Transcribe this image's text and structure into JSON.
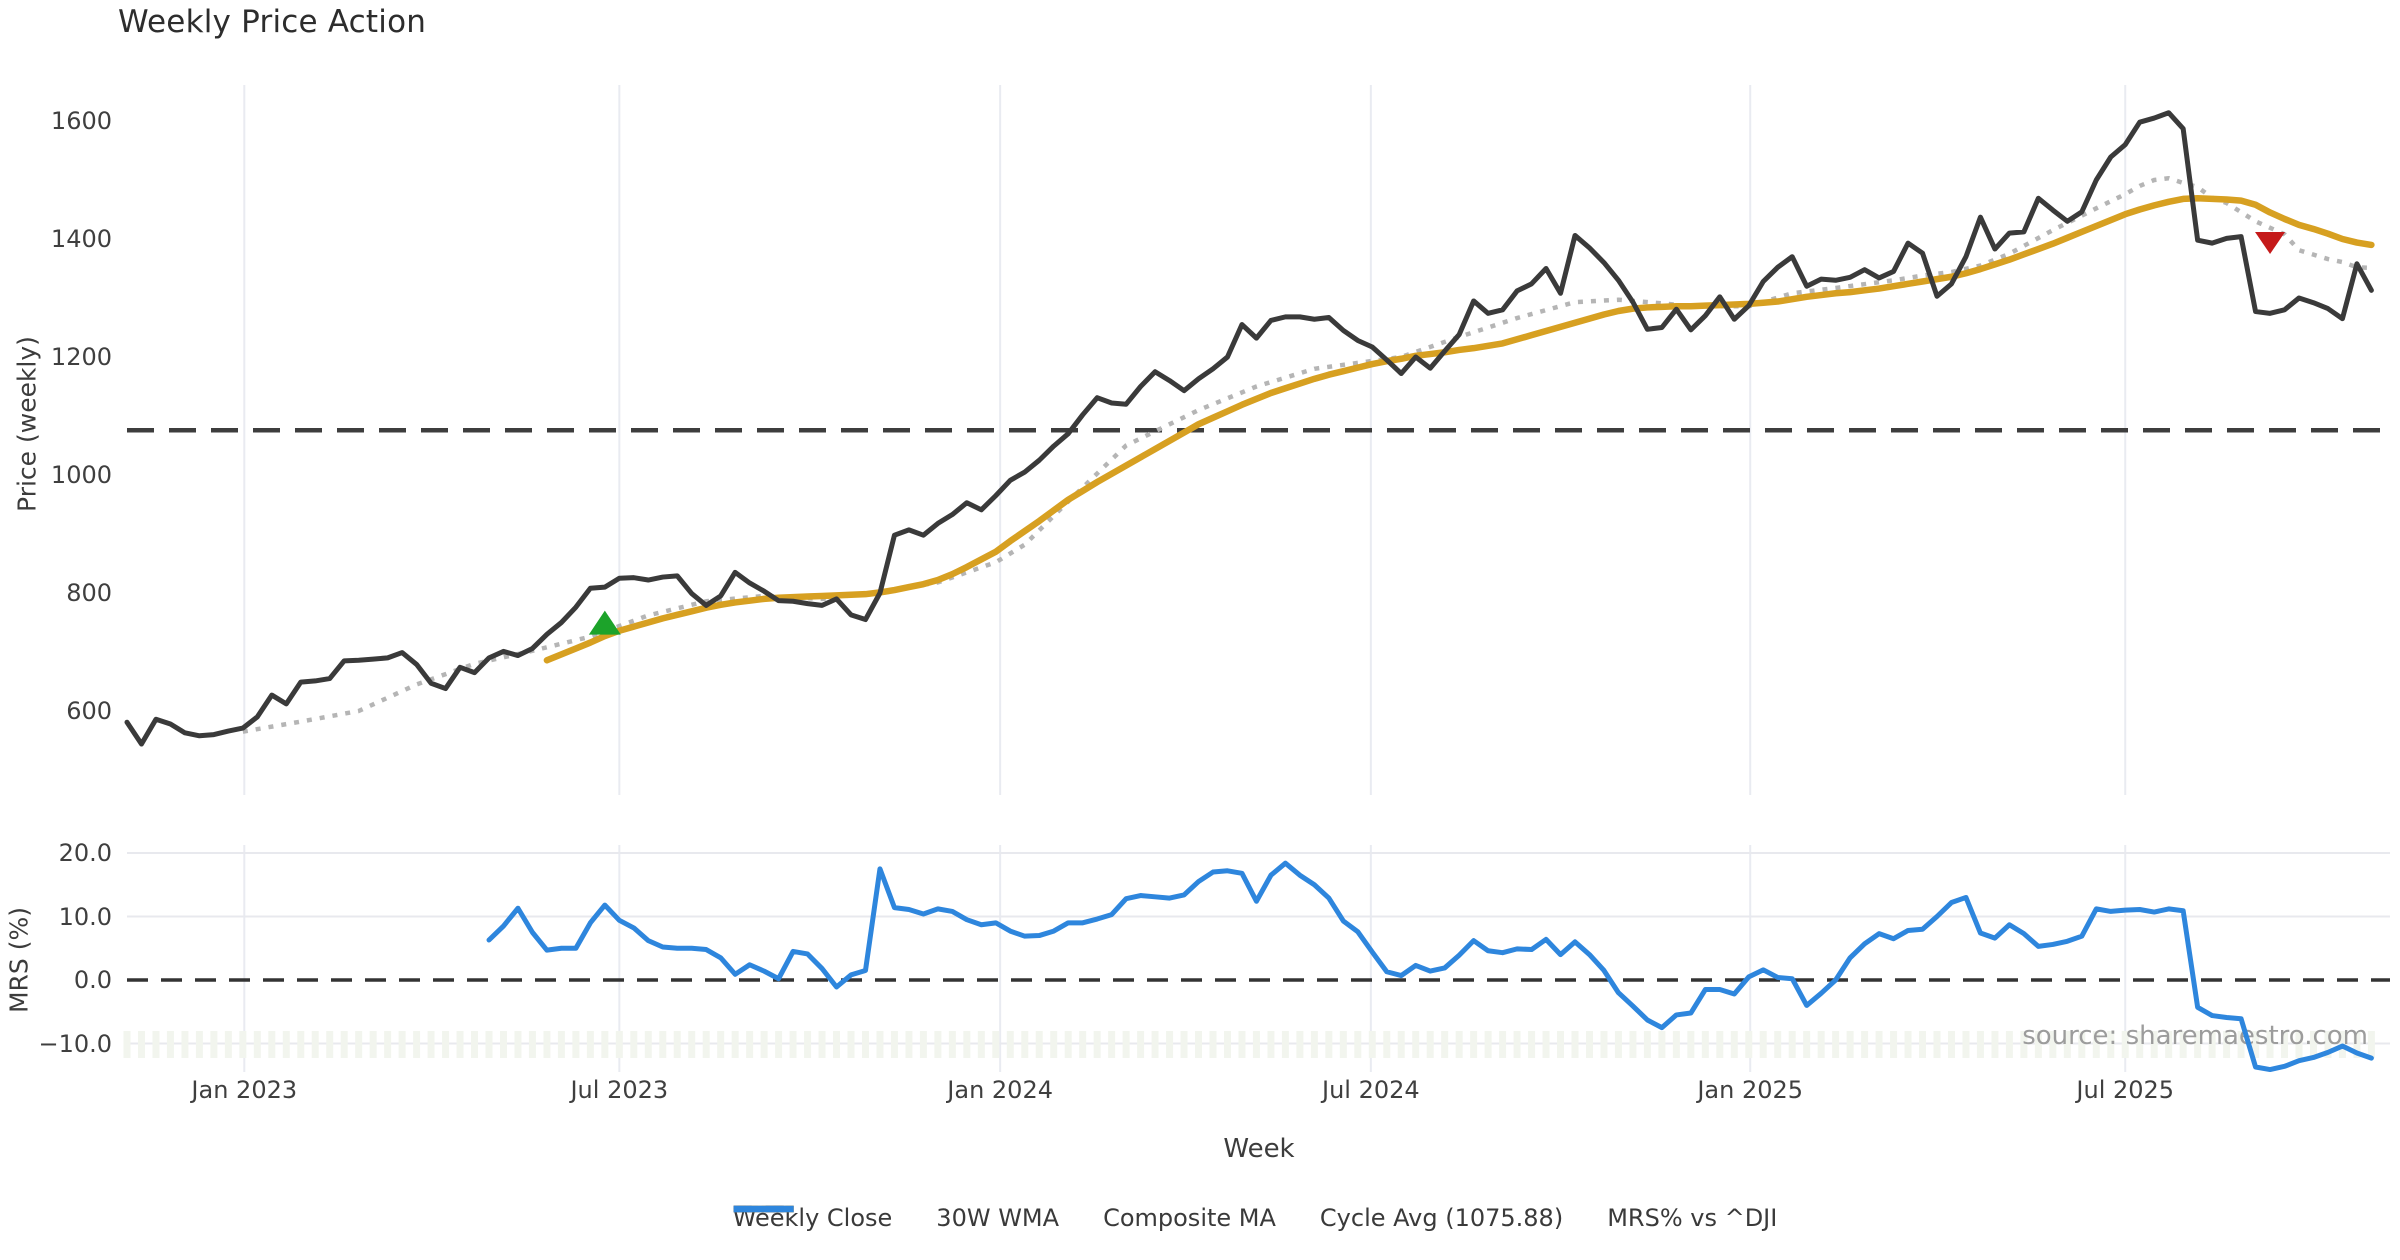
{
  "title": "Weekly Price Action",
  "source": "source: sharemaestro.com",
  "legend": [
    {
      "label": "Weekly Close",
      "style": "solid",
      "color": "#3a3a3a"
    },
    {
      "label": "30W WMA",
      "style": "solid",
      "color": "#d7a021"
    },
    {
      "label": "Composite MA",
      "style": "dotted",
      "color": "#b5b5b5"
    },
    {
      "label": "Cycle Avg (1075.88)",
      "style": "dashed",
      "color": "#3d3d3d"
    },
    {
      "label": "MRS% vs ^DJI",
      "style": "solid",
      "color": "#2e86dd"
    }
  ],
  "colors": {
    "weekly_close": "#3a3a3a",
    "wma_30w": "#d7a021",
    "composite_ma": "#b5b5b5",
    "cycle_avg": "#3d3d3d",
    "mrs": "#2e86dd",
    "buy_marker": "#1ca32a",
    "sell_marker": "#c51a1a",
    "grid": "#e9ebf1",
    "minor_tick": "#f2f5ee",
    "source_text": "#9c9c9c"
  },
  "chart_data": {
    "type": "line",
    "title": "Weekly Price Action",
    "x_axis": {
      "label": "Week",
      "tick_labels": [
        "Jan 2023",
        "Jul 2023",
        "Jan 2024",
        "Jul 2024",
        "Jan 2025",
        "Jul 2025"
      ],
      "tick_weeks": [
        8.1,
        34.0,
        60.3,
        85.9,
        112.1,
        138.0
      ],
      "total_weeks": 155,
      "grid": true,
      "weekly_minor_ticks": true
    },
    "price_panel": {
      "label": "Price (weekly)",
      "tick_values": [
        1600,
        1400,
        1200,
        1000,
        800,
        600
      ],
      "tick_labels": [
        "1600",
        "1400",
        "1200",
        "1000",
        "800",
        "600"
      ],
      "ylim": [
        458,
        1661
      ],
      "grid": "vertical-only",
      "cycle_avg_value": 1075.88,
      "series": [
        {
          "name": "Weekly Close",
          "style": "solid",
          "color": "#3a3a3a",
          "start_week": 0,
          "values": [
            581,
            544,
            586,
            578,
            563,
            558,
            560,
            566,
            571,
            590,
            627,
            612,
            649,
            651,
            655,
            685,
            686,
            688,
            690,
            699,
            679,
            647,
            638,
            674,
            665,
            690,
            701,
            694,
            706,
            730,
            750,
            776,
            808,
            810,
            825,
            826,
            822,
            827,
            829,
            799,
            779,
            795,
            835,
            817,
            803,
            787,
            786,
            782,
            779,
            790,
            763,
            755,
            800,
            898,
            907,
            898,
            918,
            933,
            953,
            941,
            965,
            991,
            1005,
            1025,
            1049,
            1070,
            1102,
            1131,
            1122,
            1120,
            1150,
            1175,
            1160,
            1143,
            1163,
            1180,
            1200,
            1255,
            1232,
            1262,
            1268,
            1268,
            1264,
            1267,
            1245,
            1228,
            1217,
            1195,
            1172,
            1200,
            1181,
            1210,
            1238,
            1295,
            1274,
            1280,
            1312,
            1324,
            1350,
            1308,
            1406,
            1385,
            1360,
            1330,
            1293,
            1247,
            1250,
            1281,
            1246,
            1270,
            1302,
            1264,
            1287,
            1328,
            1352,
            1370,
            1320,
            1332,
            1330,
            1335,
            1348,
            1334,
            1345,
            1393,
            1376,
            1303,
            1324,
            1370,
            1437,
            1383,
            1410,
            1412,
            1469,
            1449,
            1430,
            1446,
            1500,
            1539,
            1560,
            1598,
            1605,
            1614,
            1587,
            1398,
            1393,
            1401,
            1404,
            1277,
            1274,
            1280,
            1300,
            1292,
            1282,
            1265,
            1358,
            1313
          ]
        },
        {
          "name": "30W WMA",
          "style": "solid",
          "color": "#d7a021",
          "start_week": 29,
          "values": [
            686,
            696,
            706,
            716,
            727,
            736,
            743,
            750,
            757,
            763,
            769,
            775,
            780,
            784,
            787,
            790,
            792,
            793,
            794,
            795,
            796,
            797,
            798,
            801,
            805,
            810,
            815,
            822,
            832,
            844,
            857,
            870,
            888,
            905,
            922,
            940,
            958,
            973,
            988,
            1002,
            1016,
            1030,
            1044,
            1058,
            1072,
            1086,
            1097,
            1108,
            1119,
            1129,
            1139,
            1147,
            1155,
            1163,
            1170,
            1176,
            1182,
            1188,
            1193,
            1197,
            1202,
            1205,
            1208,
            1212,
            1215,
            1219,
            1223,
            1230,
            1237,
            1244,
            1251,
            1258,
            1265,
            1272,
            1278,
            1282,
            1284,
            1285,
            1286,
            1286,
            1287,
            1288,
            1289,
            1290,
            1292,
            1294,
            1298,
            1302,
            1305,
            1308,
            1310,
            1313,
            1316,
            1320,
            1324,
            1328,
            1332,
            1336,
            1342,
            1349,
            1357,
            1365,
            1374,
            1383,
            1392,
            1402,
            1412,
            1422,
            1432,
            1442,
            1450,
            1457,
            1463,
            1468,
            1469,
            1468,
            1467,
            1465,
            1458,
            1445,
            1434,
            1424,
            1417,
            1409,
            1400,
            1394,
            1390
          ]
        },
        {
          "name": "Composite MA",
          "style": "dotted",
          "color": "#b5b5b5",
          "points": [
            [
              8,
              565
            ],
            [
              12,
              582
            ],
            [
              16,
              600
            ],
            [
              20,
              645
            ],
            [
              24,
              680
            ],
            [
              28,
              702
            ],
            [
              32,
              726
            ],
            [
              36,
              762
            ],
            [
              40,
              786
            ],
            [
              44,
              795
            ],
            [
              48,
              790
            ],
            [
              52,
              802
            ],
            [
              56,
              818
            ],
            [
              60,
              852
            ],
            [
              62,
              882
            ],
            [
              65,
              955
            ],
            [
              69,
              1050
            ],
            [
              74,
              1110
            ],
            [
              78,
              1150
            ],
            [
              82,
              1180
            ],
            [
              88,
              1200
            ],
            [
              92,
              1234
            ],
            [
              96,
              1266
            ],
            [
              100,
              1293
            ],
            [
              103,
              1297
            ],
            [
              106,
              1291
            ],
            [
              108,
              1286
            ],
            [
              112,
              1286
            ],
            [
              115,
              1308
            ],
            [
              118,
              1317
            ],
            [
              122,
              1330
            ],
            [
              124,
              1338
            ],
            [
              126,
              1344
            ],
            [
              128,
              1355
            ],
            [
              130,
              1375
            ],
            [
              133,
              1415
            ],
            [
              136,
              1452
            ],
            [
              138,
              1476
            ],
            [
              139,
              1490
            ],
            [
              140,
              1500
            ],
            [
              141,
              1503
            ],
            [
              142,
              1495
            ],
            [
              143,
              1488
            ],
            [
              144,
              1470
            ],
            [
              145,
              1461
            ],
            [
              147,
              1430
            ],
            [
              149,
              1408
            ],
            [
              150,
              1381
            ],
            [
              152,
              1366
            ],
            [
              153,
              1361
            ],
            [
              154,
              1352
            ],
            [
              155,
              1351
            ]
          ]
        },
        {
          "name": "Cycle Avg",
          "style": "dashed",
          "color": "#3d3d3d",
          "value": 1075.88
        }
      ],
      "markers": [
        {
          "kind": "buy-triangle-up",
          "week": 33,
          "value": 748,
          "color": "#1ca32a"
        },
        {
          "kind": "sell-triangle-down",
          "week": 148,
          "value": 1395,
          "color": "#c51a1a"
        }
      ]
    },
    "mrs_panel": {
      "label": "MRS (%)",
      "tick_values": [
        20,
        10,
        0,
        -10
      ],
      "tick_labels": [
        "20.0",
        "10.0",
        "0.0",
        "−10.0"
      ],
      "ylim": [
        -14.6,
        21.4
      ],
      "grid": "horizontal-and-vertical",
      "zero_line_dashed": true,
      "series": [
        {
          "name": "MRS% vs ^DJI",
          "style": "solid",
          "color": "#2e86dd",
          "start_week": 25,
          "values": [
            6.3,
            8.5,
            11.3,
            7.5,
            4.7,
            5.0,
            5.0,
            9.0,
            11.8,
            9.4,
            8.2,
            6.2,
            5.2,
            5.0,
            5.0,
            4.8,
            3.5,
            0.9,
            2.4,
            1.4,
            0.2,
            4.5,
            4.1,
            1.8,
            -1.1,
            0.8,
            1.5,
            17.5,
            11.4,
            11.1,
            10.4,
            11.2,
            10.8,
            9.5,
            8.7,
            9.0,
            7.7,
            6.9,
            7.0,
            7.7,
            9.0,
            9.0,
            9.6,
            10.3,
            12.8,
            13.3,
            13.1,
            12.9,
            13.4,
            15.5,
            17.0,
            17.2,
            16.8,
            12.4,
            16.5,
            18.4,
            16.5,
            15.0,
            12.9,
            9.3,
            7.6,
            4.4,
            1.3,
            0.7,
            2.3,
            1.4,
            1.9,
            3.9,
            6.2,
            4.6,
            4.3,
            4.9,
            4.8,
            6.4,
            4.0,
            6.0,
            4.0,
            1.5,
            -2.0,
            -4.1,
            -6.3,
            -7.5,
            -5.5,
            -5.2,
            -1.5,
            -1.5,
            -2.2,
            0.5,
            1.6,
            0.4,
            0.2,
            -4.0,
            -2.1,
            0.0,
            3.5,
            5.7,
            7.3,
            6.5,
            7.8,
            8.0,
            10.0,
            12.2,
            13.0,
            7.4,
            6.6,
            8.7,
            7.3,
            5.3,
            5.6,
            6.1,
            6.9,
            11.2,
            10.8,
            11.0,
            11.1,
            10.7,
            11.2,
            10.9,
            -4.3,
            -5.6,
            -5.9,
            -6.1,
            -13.7,
            -14.1,
            -13.6,
            -12.7,
            -12.2,
            -11.4,
            -10.4,
            -11.5,
            -12.3
          ]
        }
      ]
    }
  }
}
